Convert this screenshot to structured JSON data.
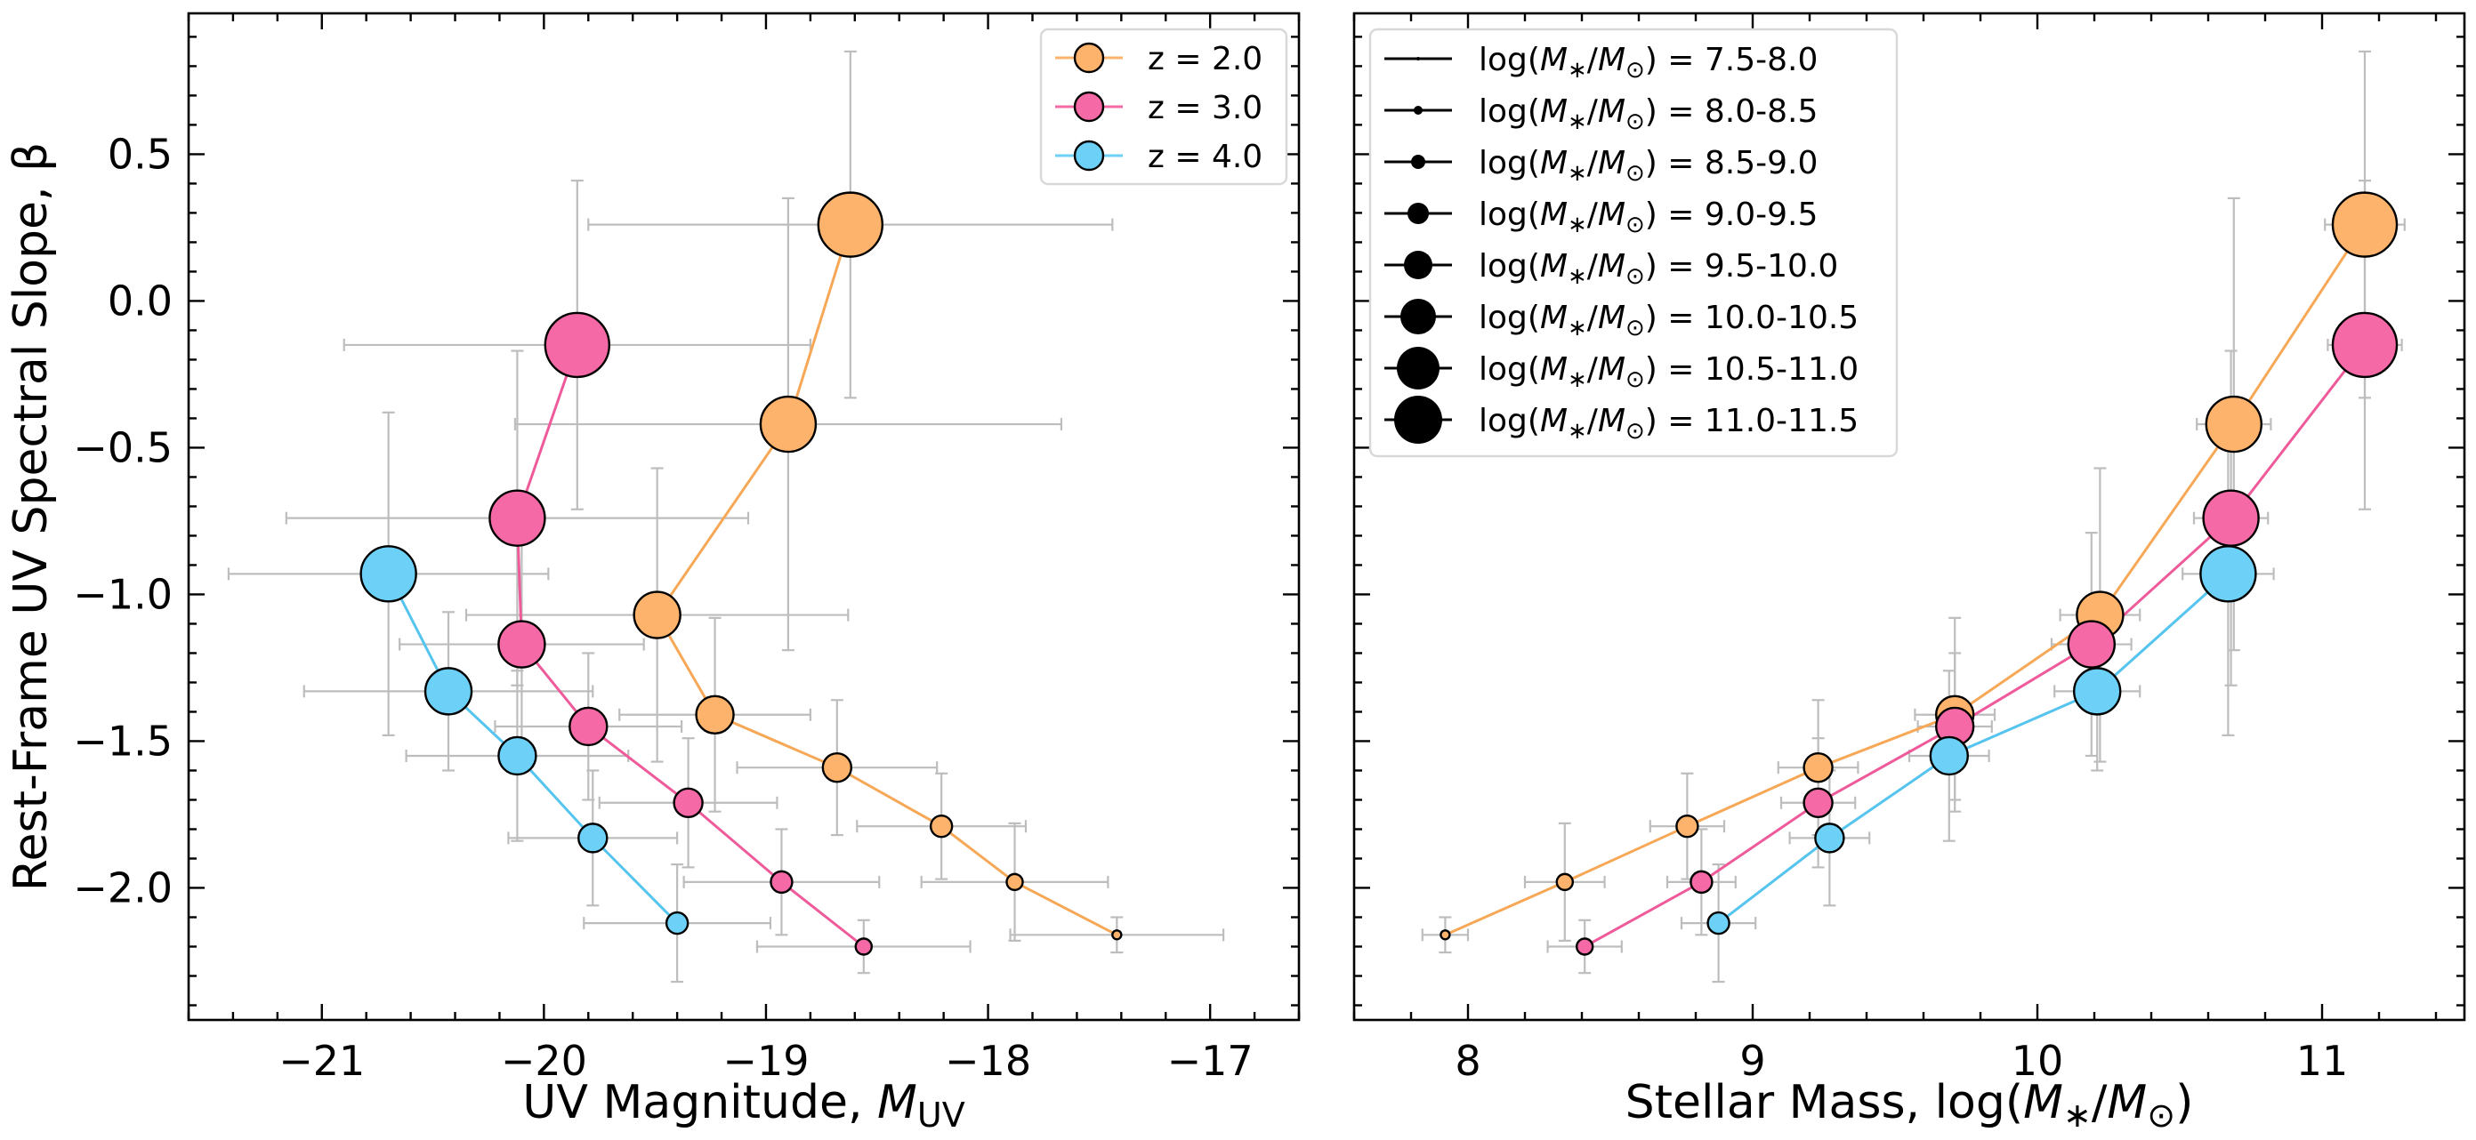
{
  "chart_data": [
    {
      "type": "scatter",
      "panel": "left",
      "xlabel": "UV Magnitude, M_UV",
      "xlabel_main": "UV Magnitude, ",
      "xlabel_sym": "M",
      "xlabel_sub": "UV",
      "ylabel": "Rest-Frame UV Spectral Slope, β",
      "xlim": [
        -21.6,
        -16.6
      ],
      "ylim": [
        -2.45,
        0.98
      ],
      "xticks": [
        -21,
        -20,
        -19,
        -18,
        -17
      ],
      "xtick_labels": [
        "−21",
        "−20",
        "−19",
        "−18",
        "−17"
      ],
      "yticks": [
        0.5,
        0.0,
        -0.5,
        -1.0,
        -1.5,
        -2.0
      ],
      "ytick_labels": [
        "0.5",
        "0.0",
        "−0.5",
        "−1.0",
        "−1.5",
        "−2.0"
      ],
      "legend": [
        {
          "label": "z = 2.0",
          "color": "#FDB36B"
        },
        {
          "label": "z = 3.0",
          "color": "#F56AA6"
        },
        {
          "label": "z = 4.0",
          "color": "#6DD0F7"
        }
      ],
      "series": [
        {
          "name": "z = 2.0",
          "color": "#FDB36B",
          "line_color": "#F7A857",
          "x": [
            -17.42,
            -17.88,
            -18.21,
            -18.68,
            -19.23,
            -19.49,
            -18.9,
            -18.62
          ],
          "y": [
            -2.16,
            -1.98,
            -1.79,
            -1.59,
            -1.41,
            -1.07,
            -0.42,
            0.26
          ],
          "xerr": [
            0.48,
            0.42,
            0.38,
            0.45,
            0.43,
            0.86,
            1.23,
            1.18
          ],
          "yerr": [
            0.06,
            0.2,
            0.18,
            0.23,
            0.33,
            0.5,
            0.77,
            0.59
          ],
          "size_bin": [
            1,
            2,
            3,
            4,
            5,
            6,
            7,
            8
          ]
        },
        {
          "name": "z = 3.0",
          "color": "#F56AA6",
          "line_color": "#EE5A9A",
          "x": [
            -18.56,
            -18.93,
            -19.35,
            -19.8,
            -20.1,
            -20.12,
            -19.85
          ],
          "y": [
            -2.2,
            -1.98,
            -1.71,
            -1.45,
            -1.17,
            -0.74,
            -0.15
          ],
          "xerr": [
            0.48,
            0.44,
            0.4,
            0.42,
            0.55,
            1.04,
            1.05
          ],
          "yerr": [
            0.09,
            0.18,
            0.22,
            0.25,
            0.38,
            0.57,
            0.56
          ],
          "size_bin": [
            2,
            3,
            4,
            5,
            6,
            7,
            8
          ]
        },
        {
          "name": "z = 4.0",
          "color": "#6DD0F7",
          "line_color": "#55C4EE",
          "x": [
            -19.4,
            -19.78,
            -20.12,
            -20.43,
            -20.7
          ],
          "y": [
            -2.12,
            -1.83,
            -1.55,
            -1.33,
            -0.93
          ],
          "xerr": [
            0.42,
            0.38,
            0.5,
            0.65,
            0.72
          ],
          "yerr": [
            0.2,
            0.23,
            0.29,
            0.27,
            0.55
          ],
          "size_bin": [
            3,
            4,
            5,
            6,
            7
          ]
        }
      ]
    },
    {
      "type": "scatter",
      "panel": "right",
      "xlabel": "Stellar Mass, log(M*/M⊙)",
      "xlabel_main": "Stellar Mass, log(",
      "xlabel_sym": "M",
      "xlabel_sub": "∗",
      "xlabel_mid": "/",
      "xlabel_sym2": "M",
      "xlabel_sub2": "⊙",
      "xlabel_end": ")",
      "xlim": [
        7.6,
        11.5
      ],
      "ylim": [
        -2.45,
        0.98
      ],
      "xticks": [
        8,
        9,
        10,
        11
      ],
      "xtick_labels": [
        "8",
        "9",
        "10",
        "11"
      ],
      "legend": [
        {
          "label": "log(M*/M⊙) = 7.5-8.0",
          "range": "7.5-8.0"
        },
        {
          "label": "log(M*/M⊙) = 8.0-8.5",
          "range": "8.0-8.5"
        },
        {
          "label": "log(M*/M⊙) = 8.5-9.0",
          "range": "8.5-9.0"
        },
        {
          "label": "log(M*/M⊙) = 9.0-9.5",
          "range": "9.0-9.5"
        },
        {
          "label": "log(M*/M⊙) = 9.5-10.0",
          "range": "9.5-10.0"
        },
        {
          "label": "log(M*/M⊙) = 10.0-10.5",
          "range": "10.0-10.5"
        },
        {
          "label": "log(M*/M⊙) = 10.5-11.0",
          "range": "10.5-11.0"
        },
        {
          "label": "log(M*/M⊙) = 11.0-11.5",
          "range": "11.0-11.5"
        }
      ],
      "series": [
        {
          "name": "z = 2.0",
          "color": "#FDB36B",
          "line_color": "#F7A857",
          "x": [
            7.92,
            8.34,
            8.77,
            9.23,
            9.71,
            10.22,
            10.69,
            11.15
          ],
          "y": [
            -2.16,
            -1.98,
            -1.79,
            -1.59,
            -1.41,
            -1.07,
            -0.42,
            0.26
          ],
          "xerr": [
            0.08,
            0.14,
            0.13,
            0.14,
            0.14,
            0.14,
            0.13,
            0.14
          ],
          "yerr": [
            0.06,
            0.2,
            0.18,
            0.23,
            0.33,
            0.5,
            0.77,
            0.59
          ],
          "size_bin": [
            1,
            2,
            3,
            4,
            5,
            6,
            7,
            8
          ]
        },
        {
          "name": "z = 3.0",
          "color": "#F56AA6",
          "line_color": "#EE5A9A",
          "x": [
            8.41,
            8.82,
            9.23,
            9.71,
            10.19,
            10.68,
            11.15
          ],
          "y": [
            -2.2,
            -1.98,
            -1.71,
            -1.45,
            -1.17,
            -0.74,
            -0.15
          ],
          "xerr": [
            0.13,
            0.12,
            0.13,
            0.13,
            0.14,
            0.13,
            0.13
          ],
          "yerr": [
            0.09,
            0.18,
            0.22,
            0.25,
            0.38,
            0.57,
            0.56
          ],
          "size_bin": [
            2,
            3,
            4,
            5,
            6,
            7,
            8
          ]
        },
        {
          "name": "z = 4.0",
          "color": "#6DD0F7",
          "line_color": "#55C4EE",
          "x": [
            8.88,
            9.27,
            9.69,
            10.21,
            10.67
          ],
          "y": [
            -2.12,
            -1.83,
            -1.55,
            -1.33,
            -0.93
          ],
          "xerr": [
            0.13,
            0.14,
            0.14,
            0.15,
            0.16
          ],
          "yerr": [
            0.2,
            0.23,
            0.29,
            0.27,
            0.55
          ],
          "size_bin": [
            3,
            4,
            5,
            6,
            7
          ]
        }
      ]
    }
  ]
}
